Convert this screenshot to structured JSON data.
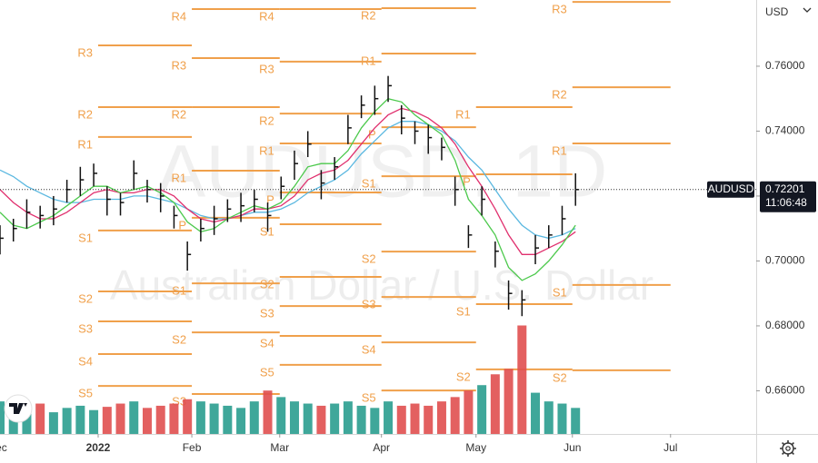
{
  "chart_data": {
    "type": "ohlc",
    "title": "AUDUSD, 1D",
    "subtitle": "Australian Dollar / U.S. Dollar",
    "currency": "USD",
    "x": [
      0,
      3,
      6,
      9,
      12,
      15,
      18,
      21,
      24,
      27,
      30,
      33,
      36,
      39,
      42,
      45,
      48,
      51,
      54,
      57,
      60,
      63,
      66,
      69,
      72,
      75,
      78,
      81,
      84,
      87,
      90,
      93,
      96,
      99,
      102,
      105,
      108,
      111,
      114,
      117,
      120,
      123,
      126,
      129
    ],
    "high": [
      0.711,
      0.713,
      0.719,
      0.717,
      0.72,
      0.725,
      0.729,
      0.73,
      0.723,
      0.721,
      0.731,
      0.725,
      0.724,
      0.717,
      0.706,
      0.713,
      0.717,
      0.719,
      0.721,
      0.722,
      0.718,
      0.726,
      0.734,
      0.74,
      0.728,
      0.732,
      0.745,
      0.751,
      0.754,
      0.757,
      0.748,
      0.743,
      0.742,
      0.738,
      0.726,
      0.711,
      0.723,
      0.706,
      0.694,
      0.691,
      0.708,
      0.711,
      0.717,
      0.727
    ],
    "low": [
      0.702,
      0.706,
      0.71,
      0.71,
      0.711,
      0.718,
      0.72,
      0.723,
      0.714,
      0.714,
      0.722,
      0.718,
      0.715,
      0.71,
      0.697,
      0.706,
      0.708,
      0.712,
      0.712,
      0.715,
      0.709,
      0.719,
      0.725,
      0.732,
      0.719,
      0.725,
      0.736,
      0.744,
      0.745,
      0.749,
      0.739,
      0.736,
      0.733,
      0.731,
      0.717,
      0.704,
      0.714,
      0.698,
      0.685,
      0.683,
      0.699,
      0.704,
      0.708,
      0.717
    ],
    "close": [
      0.707,
      0.71,
      0.715,
      0.714,
      0.716,
      0.722,
      0.725,
      0.727,
      0.719,
      0.718,
      0.727,
      0.722,
      0.72,
      0.714,
      0.702,
      0.71,
      0.713,
      0.716,
      0.717,
      0.719,
      0.714,
      0.723,
      0.73,
      0.736,
      0.724,
      0.729,
      0.741,
      0.748,
      0.75,
      0.754,
      0.744,
      0.74,
      0.738,
      0.735,
      0.722,
      0.708,
      0.719,
      0.703,
      0.69,
      0.688,
      0.704,
      0.708,
      0.713,
      0.722
    ],
    "series": [
      {
        "color": "#5bb8e0",
        "values": [
          0.728,
          0.726,
          0.723,
          0.721,
          0.719,
          0.718,
          0.718,
          0.719,
          0.719,
          0.719,
          0.72,
          0.72,
          0.719,
          0.718,
          0.716,
          0.714,
          0.713,
          0.713,
          0.714,
          0.715,
          0.715,
          0.716,
          0.718,
          0.721,
          0.723,
          0.725,
          0.728,
          0.733,
          0.737,
          0.741,
          0.743,
          0.743,
          0.742,
          0.74,
          0.737,
          0.732,
          0.728,
          0.722,
          0.716,
          0.711,
          0.708,
          0.707,
          0.708,
          0.71
        ]
      },
      {
        "color": "#e0306e",
        "values": [
          0.722,
          0.718,
          0.715,
          0.713,
          0.713,
          0.715,
          0.718,
          0.721,
          0.722,
          0.721,
          0.721,
          0.722,
          0.722,
          0.72,
          0.716,
          0.713,
          0.712,
          0.713,
          0.714,
          0.716,
          0.716,
          0.717,
          0.72,
          0.725,
          0.727,
          0.728,
          0.731,
          0.736,
          0.741,
          0.745,
          0.747,
          0.746,
          0.744,
          0.741,
          0.736,
          0.729,
          0.723,
          0.716,
          0.708,
          0.702,
          0.702,
          0.704,
          0.706,
          0.709
        ]
      },
      {
        "color": "#4cc94c",
        "values": [
          0.715,
          0.711,
          0.71,
          0.712,
          0.714,
          0.717,
          0.72,
          0.723,
          0.723,
          0.721,
          0.722,
          0.723,
          0.721,
          0.718,
          0.712,
          0.709,
          0.71,
          0.713,
          0.715,
          0.717,
          0.716,
          0.718,
          0.723,
          0.729,
          0.73,
          0.73,
          0.734,
          0.741,
          0.746,
          0.75,
          0.749,
          0.745,
          0.742,
          0.739,
          0.731,
          0.719,
          0.714,
          0.708,
          0.698,
          0.694,
          0.696,
          0.7,
          0.705,
          0.711
        ]
      }
    ],
    "volume": [
      30,
      25,
      22,
      28,
      20,
      24,
      26,
      22,
      25,
      28,
      30,
      24,
      26,
      28,
      32,
      30,
      28,
      26,
      24,
      30,
      40,
      34,
      30,
      28,
      26,
      28,
      30,
      26,
      24,
      30,
      26,
      28,
      26,
      30,
      34,
      40,
      45,
      55,
      60,
      100,
      38,
      30,
      28,
      24
    ],
    "up_color": "#2a9d8f",
    "down_color": "#e04f4f",
    "pivot_color": "#f0a04b",
    "xlim": [
      0,
      169.5
    ],
    "ylim": [
      0.6467,
      0.7804
    ],
    "y2lim": [
      0,
      400
    ],
    "xticks": [
      {
        "value": -0.6,
        "label": "Dec"
      },
      {
        "value": 22,
        "label": "2022"
      },
      {
        "value": 43,
        "label": "Feb"
      },
      {
        "value": 62.7,
        "label": "Mar"
      },
      {
        "value": 85.5,
        "label": "Apr"
      },
      {
        "value": 106.7,
        "label": "May"
      },
      {
        "value": 128.3,
        "label": "Jun"
      },
      {
        "value": 150.3,
        "label": "Jul"
      }
    ],
    "yticks": [
      {
        "value": 0.76,
        "label": "0.76000"
      },
      {
        "value": 0.74,
        "label": "0.74000"
      },
      {
        "value": 0.72,
        "label": "0.72000"
      },
      {
        "value": 0.7,
        "label": "0.70000"
      },
      {
        "value": 0.68,
        "label": "0.68000"
      },
      {
        "value": 0.66,
        "label": "0.66000"
      }
    ],
    "pivots": [
      {
        "x0": 22,
        "x1": 43,
        "levels": [
          {
            "label": "R3",
            "value": 0.7664
          },
          {
            "label": "R2",
            "value": 0.7474
          },
          {
            "label": "R1",
            "value": 0.7382
          },
          {
            "label": "S1",
            "value": 0.7094
          },
          {
            "label": "S2",
            "value": 0.6906
          },
          {
            "label": "S3",
            "value": 0.6814
          },
          {
            "label": "S4",
            "value": 0.6713
          },
          {
            "label": "S5",
            "value": 0.6615
          }
        ]
      },
      {
        "x0": 43,
        "x1": 62.7,
        "levels": [
          {
            "label": "R4",
            "value": 0.7776
          },
          {
            "label": "R3",
            "value": 0.7625
          },
          {
            "label": "R2",
            "value": 0.7474
          },
          {
            "label": "R1",
            "value": 0.7278
          },
          {
            "label": "P",
            "value": 0.7133
          },
          {
            "label": "S1",
            "value": 0.6931
          },
          {
            "label": "S2",
            "value": 0.678
          },
          {
            "label": "S3",
            "value": 0.659
          }
        ]
      },
      {
        "x0": 62.7,
        "x1": 85.5,
        "levels": [
          {
            "label": "R4",
            "value": 0.7776
          },
          {
            "label": "R3",
            "value": 0.7614
          },
          {
            "label": "R2",
            "value": 0.7454
          },
          {
            "label": "R1",
            "value": 0.7362
          },
          {
            "label": "P",
            "value": 0.7211
          },
          {
            "label": "S1",
            "value": 0.7113
          },
          {
            "label": "S2",
            "value": 0.6951
          },
          {
            "label": "S3",
            "value": 0.6861
          },
          {
            "label": "S4",
            "value": 0.6769
          },
          {
            "label": "S5",
            "value": 0.668
          }
        ]
      },
      {
        "x0": 85.5,
        "x1": 106.7,
        "levels": [
          {
            "label": "R2",
            "value": 0.7779
          },
          {
            "label": "R1",
            "value": 0.7639
          },
          {
            "label": "P",
            "value": 0.7412
          },
          {
            "label": "S1",
            "value": 0.7261
          },
          {
            "label": "S2",
            "value": 0.7029
          },
          {
            "label": "S3",
            "value": 0.6889
          },
          {
            "label": "S4",
            "value": 0.6749
          },
          {
            "label": "S5",
            "value": 0.6601
          }
        ]
      },
      {
        "x0": 106.7,
        "x1": 128.3,
        "levels": [
          {
            "label": "R1",
            "value": 0.7474
          },
          {
            "label": "P",
            "value": 0.7267
          },
          {
            "label": "S1",
            "value": 0.6867
          },
          {
            "label": "S2",
            "value": 0.6666
          }
        ]
      },
      {
        "x0": 128.3,
        "x1": 150.3,
        "levels": [
          {
            "label": "R3",
            "value": 0.7798
          },
          {
            "label": "R2",
            "value": 0.7535
          },
          {
            "label": "R1",
            "value": 0.7362
          },
          {
            "label": "S1",
            "value": 0.6926
          },
          {
            "label": "S2",
            "value": 0.6663
          }
        ]
      }
    ],
    "last_price": {
      "symbol": "AUDUSD",
      "value": 0.72201,
      "time": "11:06:48"
    }
  }
}
